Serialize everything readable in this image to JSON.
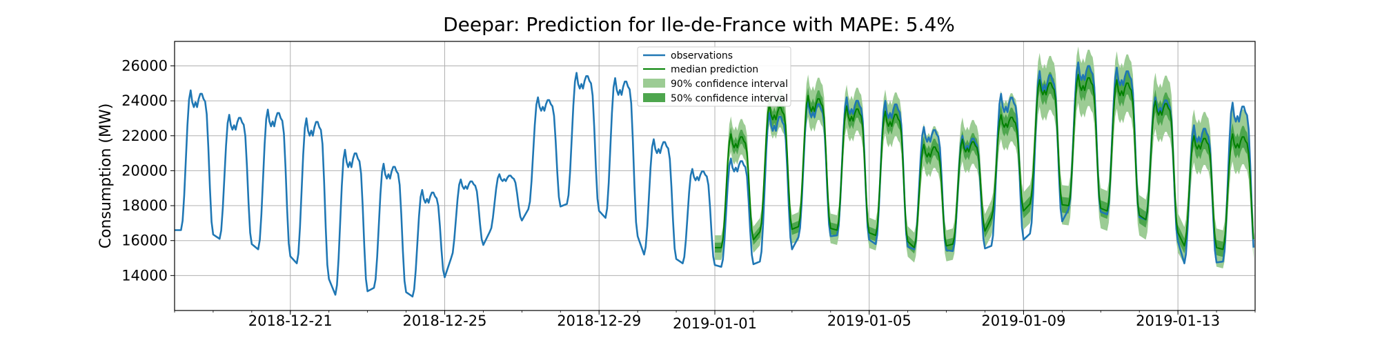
{
  "chart_data": {
    "type": "line",
    "title": "Deepar: Prediction for Ile-de-France with MAPE: 5.4%",
    "xlabel": "",
    "ylabel": "Consumption (MW)",
    "x_range": [
      "2018-12-18",
      "2019-01-15"
    ],
    "ylim": [
      12000,
      27400
    ],
    "x_ticks": [
      "2018-12-21",
      "2018-12-25",
      "2018-12-29",
      "2019-01-01",
      "2019-01-05",
      "2019-01-09",
      "2019-01-13"
    ],
    "y_ticks": [
      14000,
      16000,
      18000,
      20000,
      22000,
      24000,
      26000
    ],
    "grid": true,
    "legend_position": "top-center",
    "colors": {
      "observations": "#1f77b4",
      "median": "#008000",
      "ci90": "#9ccc94",
      "ci50": "#4ea64e"
    },
    "legend": [
      "observations",
      "median prediction",
      "90% confidence interval",
      "50% confidence interval"
    ],
    "forecast_start": "2019-01-01",
    "series": [
      {
        "name": "observations",
        "dates": [
          "2018-12-18",
          "2018-12-19",
          "2018-12-20",
          "2018-12-21",
          "2018-12-22",
          "2018-12-23",
          "2018-12-24",
          "2018-12-25",
          "2018-12-26",
          "2018-12-27",
          "2018-12-28",
          "2018-12-29",
          "2018-12-30",
          "2018-12-31",
          "2019-01-01",
          "2019-01-02",
          "2019-01-03",
          "2019-01-04",
          "2019-01-05",
          "2019-01-06",
          "2019-01-07",
          "2019-01-08",
          "2019-01-09",
          "2019-01-10",
          "2019-01-11",
          "2019-01-12",
          "2019-01-13",
          "2019-01-14"
        ],
        "daily_min": [
          16600,
          16100,
          15500,
          14700,
          12900,
          13300,
          12800,
          15000,
          16500,
          17800,
          18100,
          17300,
          15200,
          14700,
          14500,
          14800,
          16200,
          16300,
          15800,
          15500,
          15400,
          15700,
          16400,
          17800,
          17500,
          17200,
          14700,
          14800
        ],
        "daily_max": [
          24600,
          23200,
          23500,
          23000,
          21200,
          20400,
          18900,
          19500,
          19800,
          24200,
          25600,
          25300,
          21800,
          20100,
          20700,
          23300,
          24000,
          24200,
          24000,
          22500,
          22000,
          24400,
          25700,
          26200,
          25900,
          24200,
          22600,
          23900
        ]
      },
      {
        "name": "median prediction",
        "dates": [
          "2019-01-01",
          "2019-01-02",
          "2019-01-03",
          "2019-01-04",
          "2019-01-05",
          "2019-01-06",
          "2019-01-07",
          "2019-01-08",
          "2019-01-09",
          "2019-01-10",
          "2019-01-11",
          "2019-01-12",
          "2019-01-13",
          "2019-01-14"
        ],
        "daily_min": [
          15600,
          16500,
          16800,
          16600,
          16300,
          15600,
          15800,
          17300,
          18100,
          18000,
          17700,
          17200,
          15700,
          15500
        ],
        "daily_max": [
          22100,
          23800,
          24300,
          23700,
          23400,
          21500,
          21800,
          23200,
          25200,
          25500,
          25200,
          24000,
          22000,
          22100
        ]
      }
    ]
  }
}
